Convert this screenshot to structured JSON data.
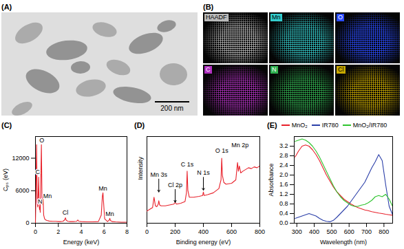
{
  "images": [
    {
      "label": "(A)",
      "scale_bar": "200 nm"
    },
    {
      "label": "(B)",
      "maps": [
        {
          "label": "HAADF",
          "color": "#bbbbbb"
        },
        {
          "label": "Mn",
          "color": "#33cccc"
        },
        {
          "label": "O",
          "color": "#2a4bff"
        },
        {
          "label": "C",
          "color": "#b030c0"
        },
        {
          "label": "N",
          "color": "#30b050"
        },
        {
          "label": "Cl",
          "color": "#c8a800"
        }
      ]
    }
  ],
  "chart_data": [
    {
      "type": "line",
      "title": "(C)",
      "x_label": "Energy (keV)",
      "y_label": "Cₚₛ (eV)",
      "color": "#e8202a",
      "x": [
        0,
        0.05,
        0.1,
        0.15,
        0.2,
        0.25,
        0.28,
        0.32,
        0.36,
        0.39,
        0.42,
        0.47,
        0.52,
        0.57,
        0.62,
        0.66,
        0.72,
        0.8,
        0.9,
        1.0,
        1.2,
        1.5,
        1.8,
        2.0,
        2.2,
        2.4,
        2.55,
        2.62,
        2.7,
        2.85,
        3.0,
        3.3,
        3.6,
        3.7,
        3.8,
        4.0,
        4.5,
        5.0,
        5.5,
        5.75,
        5.85,
        5.9,
        5.95,
        6.05,
        6.3,
        6.45,
        6.5,
        6.55,
        6.7,
        7.0,
        7.5,
        8.0
      ],
      "values": [
        0,
        6000,
        14500,
        4000,
        3000,
        6000,
        8500,
        3500,
        2500,
        3000,
        2000,
        8000,
        14500,
        5000,
        3500,
        5000,
        1500,
        800,
        600,
        500,
        400,
        350,
        350,
        300,
        300,
        350,
        600,
        1000,
        500,
        350,
        300,
        300,
        350,
        600,
        350,
        300,
        250,
        250,
        300,
        1500,
        5000,
        5600,
        4000,
        800,
        300,
        600,
        900,
        500,
        300,
        250,
        200,
        200
      ],
      "xlim": [
        0,
        8
      ],
      "xticks": [
        0,
        2,
        4,
        6,
        8
      ],
      "ylim": [
        0,
        16000
      ],
      "yticks": [
        0,
        6000,
        12000
      ],
      "annotations": [
        {
          "text": "C",
          "x": 0.2,
          "y": 9500
        },
        {
          "text": "O",
          "x": 0.55,
          "y": 15300
        },
        {
          "text": "N",
          "x": 0.4,
          "y": 4000
        },
        {
          "text": "Mn",
          "x": 1.05,
          "y": 5000
        },
        {
          "text": "Cl",
          "x": 2.62,
          "y": 1900
        },
        {
          "text": "Mn",
          "x": 5.9,
          "y": 6400
        },
        {
          "text": "Mn",
          "x": 6.5,
          "y": 1700
        }
      ]
    },
    {
      "type": "line",
      "title": "(D)",
      "x_label": "Binding energy (eV)",
      "y_label": "Intensity",
      "color": "#e8202a",
      "x": [
        0,
        20,
        40,
        50,
        60,
        70,
        80,
        84,
        90,
        100,
        130,
        160,
        190,
        200,
        210,
        240,
        270,
        280,
        285,
        290,
        300,
        330,
        370,
        395,
        400,
        405,
        430,
        470,
        510,
        525,
        530,
        535,
        545,
        560,
        600,
        630,
        642,
        648,
        655,
        665,
        680,
        700,
        720,
        740,
        760,
        780,
        800
      ],
      "values": [
        14,
        16,
        18,
        30,
        20,
        19,
        22,
        26,
        21,
        20,
        20,
        21,
        22,
        24,
        22,
        23,
        25,
        35,
        60,
        38,
        30,
        30,
        31,
        32,
        36,
        32,
        33,
        35,
        40,
        50,
        75,
        55,
        47,
        45,
        46,
        50,
        70,
        60,
        66,
        58,
        60,
        62,
        64,
        63,
        65,
        64,
        66
      ],
      "xlim": [
        0,
        800
      ],
      "xticks": [
        0,
        200,
        400,
        600,
        800
      ],
      "ylim": [
        0,
        100
      ],
      "tick_labels": "x",
      "annotations": [
        {
          "text": "Mn 3s",
          "x": 84,
          "y": 56,
          "marker": "arrow"
        },
        {
          "text": "Cl 2p",
          "x": 200,
          "y": 44,
          "marker": "arrow"
        },
        {
          "text": "N 1s",
          "x": 400,
          "y": 58,
          "marker": "arrow"
        },
        {
          "text": "C 1s",
          "x": 285,
          "y": 68
        },
        {
          "text": "O 1s",
          "x": 530,
          "y": 84
        },
        {
          "text": "Mn 2p",
          "x": 660,
          "y": 90
        }
      ]
    },
    {
      "type": "line",
      "title": "(E)",
      "x_label": "Wavelength (nm)",
      "y_label": "Absorbance",
      "legend": "top",
      "x": [
        290,
        310,
        330,
        350,
        370,
        390,
        410,
        430,
        450,
        470,
        490,
        510,
        530,
        550,
        570,
        590,
        610,
        630,
        650,
        670,
        690,
        710,
        730,
        750,
        770,
        790,
        810,
        830,
        850
      ],
      "series": [
        {
          "name": "MnO₂",
          "color": "#e8202a",
          "values": [
            2.75,
            3.0,
            3.2,
            3.25,
            3.2,
            3.05,
            2.85,
            2.6,
            2.3,
            2.0,
            1.75,
            1.5,
            1.3,
            1.15,
            1.0,
            0.9,
            0.8,
            0.72,
            0.65,
            0.6,
            0.55,
            0.52,
            0.48,
            0.45,
            0.42,
            0.4,
            0.37,
            0.35,
            0.33
          ]
        },
        {
          "name": "IR780",
          "color": "#2a3ea8",
          "values": [
            0.2,
            0.25,
            0.3,
            0.35,
            0.4,
            0.35,
            0.3,
            0.2,
            0.12,
            0.08,
            0.06,
            0.12,
            0.25,
            0.4,
            0.55,
            0.7,
            0.9,
            1.1,
            1.3,
            1.5,
            1.7,
            2.0,
            2.3,
            2.55,
            2.85,
            2.6,
            1.6,
            0.7,
            0.35
          ]
        },
        {
          "name": "MnO₂/IR780",
          "color": "#2ec42e",
          "values": [
            3.4,
            3.45,
            3.5,
            3.45,
            3.35,
            3.2,
            3.0,
            2.75,
            2.45,
            2.15,
            1.85,
            1.55,
            1.3,
            1.1,
            0.95,
            0.85,
            0.75,
            0.7,
            0.7,
            0.75,
            0.78,
            0.85,
            0.95,
            1.1,
            1.15,
            1.1,
            1.2,
            1.0,
            0.7
          ]
        }
      ],
      "xlim": [
        285,
        850
      ],
      "xticks": [
        300,
        400,
        500,
        600,
        700,
        800
      ],
      "ylim": [
        0,
        3.6
      ],
      "yticks": [
        {
          "value": 0,
          "label": "0.0"
        },
        0.4,
        0.8,
        1.2,
        1.6,
        {
          "value": 2,
          "label": "2.0"
        },
        2.4,
        2.8,
        3.2
      ]
    }
  ]
}
